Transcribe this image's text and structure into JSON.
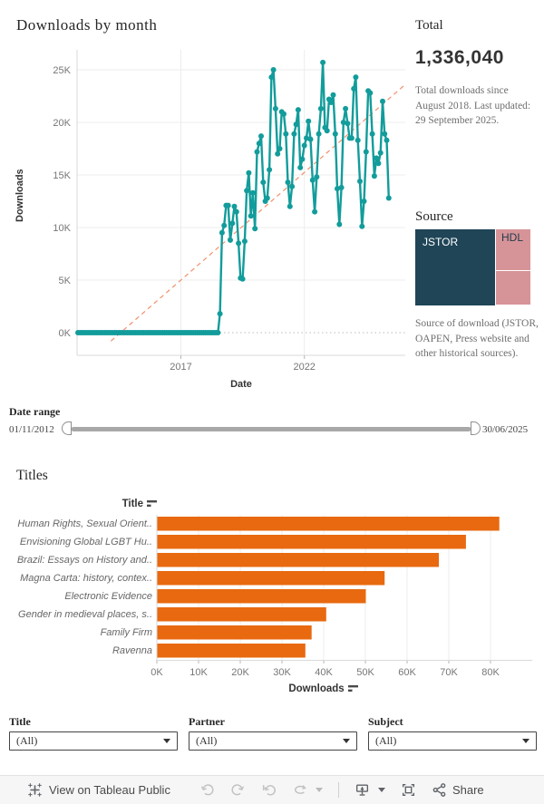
{
  "chart_data": [
    {
      "name": "downloads-by-month",
      "type": "line",
      "title": "Downloads by month",
      "xlabel": "Date",
      "ylabel": "Downloads",
      "units": "thousands of downloads per month",
      "start_month": "2012-11",
      "end_month": "2025-06",
      "y_ticks": [
        0,
        5,
        10,
        15,
        20,
        25
      ],
      "y_tick_labels": [
        "0K",
        "5K",
        "10K",
        "15K",
        "20K",
        "25K"
      ],
      "x_ticks": [
        {
          "label": "2017",
          "month_index": 50
        },
        {
          "label": "2022",
          "month_index": 110
        }
      ],
      "line_color": "#129c9b",
      "trend_line": {
        "color": "#f2906b",
        "start": {
          "month_index": 16,
          "value": -0.8
        },
        "end": {
          "month_index": 159,
          "value": 23.6
        }
      },
      "values_thousands": [
        0,
        0,
        0,
        0,
        0,
        0,
        0,
        0,
        0,
        0,
        0,
        0,
        0,
        0,
        0,
        0,
        0,
        0,
        0,
        0,
        0,
        0,
        0,
        0,
        0,
        0,
        0,
        0,
        0,
        0,
        0,
        0,
        0,
        0,
        0,
        0,
        0,
        0,
        0,
        0,
        0,
        0,
        0,
        0,
        0,
        0,
        0,
        0,
        0,
        0,
        0,
        0,
        0,
        0,
        0,
        0,
        0,
        0,
        0,
        0,
        0,
        0,
        0,
        0,
        0,
        0,
        0,
        0,
        0,
        1.8,
        9.5,
        10.2,
        12.1,
        12.1,
        8.8,
        10.4,
        12.0,
        11.5,
        8.5,
        5.2,
        5.1,
        8.7,
        13.5,
        15.2,
        11.1,
        13.3,
        9.9,
        17.2,
        18.0,
        18.7,
        14.3,
        12.5,
        12.8,
        15.5,
        24.3,
        25.0,
        21.3,
        17.0,
        17.5,
        21.0,
        20.8,
        18.9,
        14.3,
        12.0,
        13.9,
        18.9,
        19.8,
        21.2,
        15.7,
        16.5,
        17.8,
        18.5,
        20.1,
        18.4,
        14.5,
        11.5,
        14.8,
        18.9,
        21.3,
        25.7,
        19.5,
        19.2,
        22.2,
        21.9,
        22.6,
        18.9,
        13.7,
        10.3,
        13.8,
        20.0,
        21.3,
        19.9,
        18.5,
        18.5,
        23.2,
        24.3,
        18.3,
        14.4,
        10.1,
        12.5,
        17.2,
        23.0,
        22.8,
        18.9,
        14.9,
        16.6,
        16.1,
        17.1,
        22.0,
        18.9,
        18.3,
        12.8
      ]
    },
    {
      "name": "titles-by-downloads",
      "type": "bar",
      "heading": "Titles",
      "col_header": "Title",
      "xlabel": "Downloads",
      "bar_color": "#e8690f",
      "categories": [
        "Human Rights, Sexual Orient..",
        "Envisioning Global LGBT Hu..",
        "Brazil: Essays on History and..",
        "Magna Carta: history, contex..",
        "Electronic Evidence",
        "Gender in medieval places, s..",
        "Family Firm",
        "Ravenna"
      ],
      "values_thousands": [
        82,
        74,
        67.5,
        54.5,
        50,
        40.5,
        37,
        35.5
      ],
      "x_tick_labels": [
        "0K",
        "10K",
        "20K",
        "30K",
        "40K",
        "50K",
        "60K",
        "70K",
        "80K"
      ],
      "xlim_thousands": [
        0,
        90
      ]
    }
  ],
  "total": {
    "heading": "Total",
    "value": "1,336,040",
    "caption": "Total downloads since August 2018. Last updated: 29 September 2025."
  },
  "source": {
    "heading": "Source",
    "caption": "Source of download (JSTOR, OAPEN, Press website and other historical sources).",
    "cells": [
      {
        "label": "JSTOR",
        "color": "#1f4557"
      },
      {
        "label": "HDL",
        "color": "#d79498"
      },
      {
        "label": "",
        "color": "#d79498"
      }
    ]
  },
  "date_range": {
    "heading": "Date range",
    "start": "01/11/2012",
    "end": "30/06/2025"
  },
  "filters": [
    {
      "label": "Title",
      "value": "(All)"
    },
    {
      "label": "Partner",
      "value": "(All)"
    },
    {
      "label": "Subject",
      "value": "(All)"
    }
  ],
  "toolbar": {
    "view_label": "View on Tableau Public",
    "share_label": "Share"
  }
}
